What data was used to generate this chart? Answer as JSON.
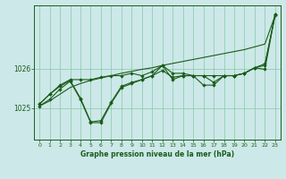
{
  "bg_color": "#cce8e8",
  "grid_color": "#88c8a8",
  "line_color": "#1a5c1a",
  "xlabel": "Graphe pression niveau de la mer (hPa)",
  "xlim": [
    -0.5,
    23.5
  ],
  "ylim": [
    1024.2,
    1027.6
  ],
  "yticks": [
    1025,
    1026
  ],
  "xticks": [
    0,
    1,
    2,
    3,
    4,
    5,
    6,
    7,
    8,
    9,
    10,
    11,
    12,
    13,
    14,
    15,
    16,
    17,
    18,
    19,
    20,
    21,
    22,
    23
  ],
  "series1": [
    1025.05,
    1025.18,
    1025.35,
    1025.52,
    1025.62,
    1025.7,
    1025.76,
    1025.82,
    1025.88,
    1025.93,
    1025.98,
    1026.02,
    1026.08,
    1026.13,
    1026.18,
    1026.23,
    1026.28,
    1026.33,
    1026.38,
    1026.43,
    1026.48,
    1026.55,
    1026.62,
    1027.35
  ],
  "series2": [
    1025.1,
    1025.35,
    1025.55,
    1025.7,
    1025.25,
    1024.65,
    1024.68,
    1025.15,
    1025.55,
    1025.65,
    1025.72,
    1025.82,
    1025.95,
    1025.78,
    1025.82,
    1025.82,
    1025.82,
    1025.65,
    1025.82,
    1025.82,
    1025.88,
    1026.02,
    1026.08,
    1027.38
  ],
  "series3": [
    1025.1,
    1025.35,
    1025.58,
    1025.72,
    1025.72,
    1025.72,
    1025.78,
    1025.82,
    1025.82,
    1025.88,
    1025.82,
    1025.92,
    1026.08,
    1025.88,
    1025.88,
    1025.82,
    1025.82,
    1025.82,
    1025.82,
    1025.82,
    1025.88,
    1026.02,
    1026.12,
    1027.35
  ],
  "series4": [
    1025.05,
    1025.22,
    1025.48,
    1025.68,
    1025.22,
    1024.63,
    1024.63,
    1025.12,
    1025.52,
    1025.62,
    1025.72,
    1025.82,
    1026.08,
    1025.72,
    1025.82,
    1025.82,
    1025.58,
    1025.58,
    1025.82,
    1025.82,
    1025.88,
    1026.02,
    1025.98,
    1027.38
  ]
}
